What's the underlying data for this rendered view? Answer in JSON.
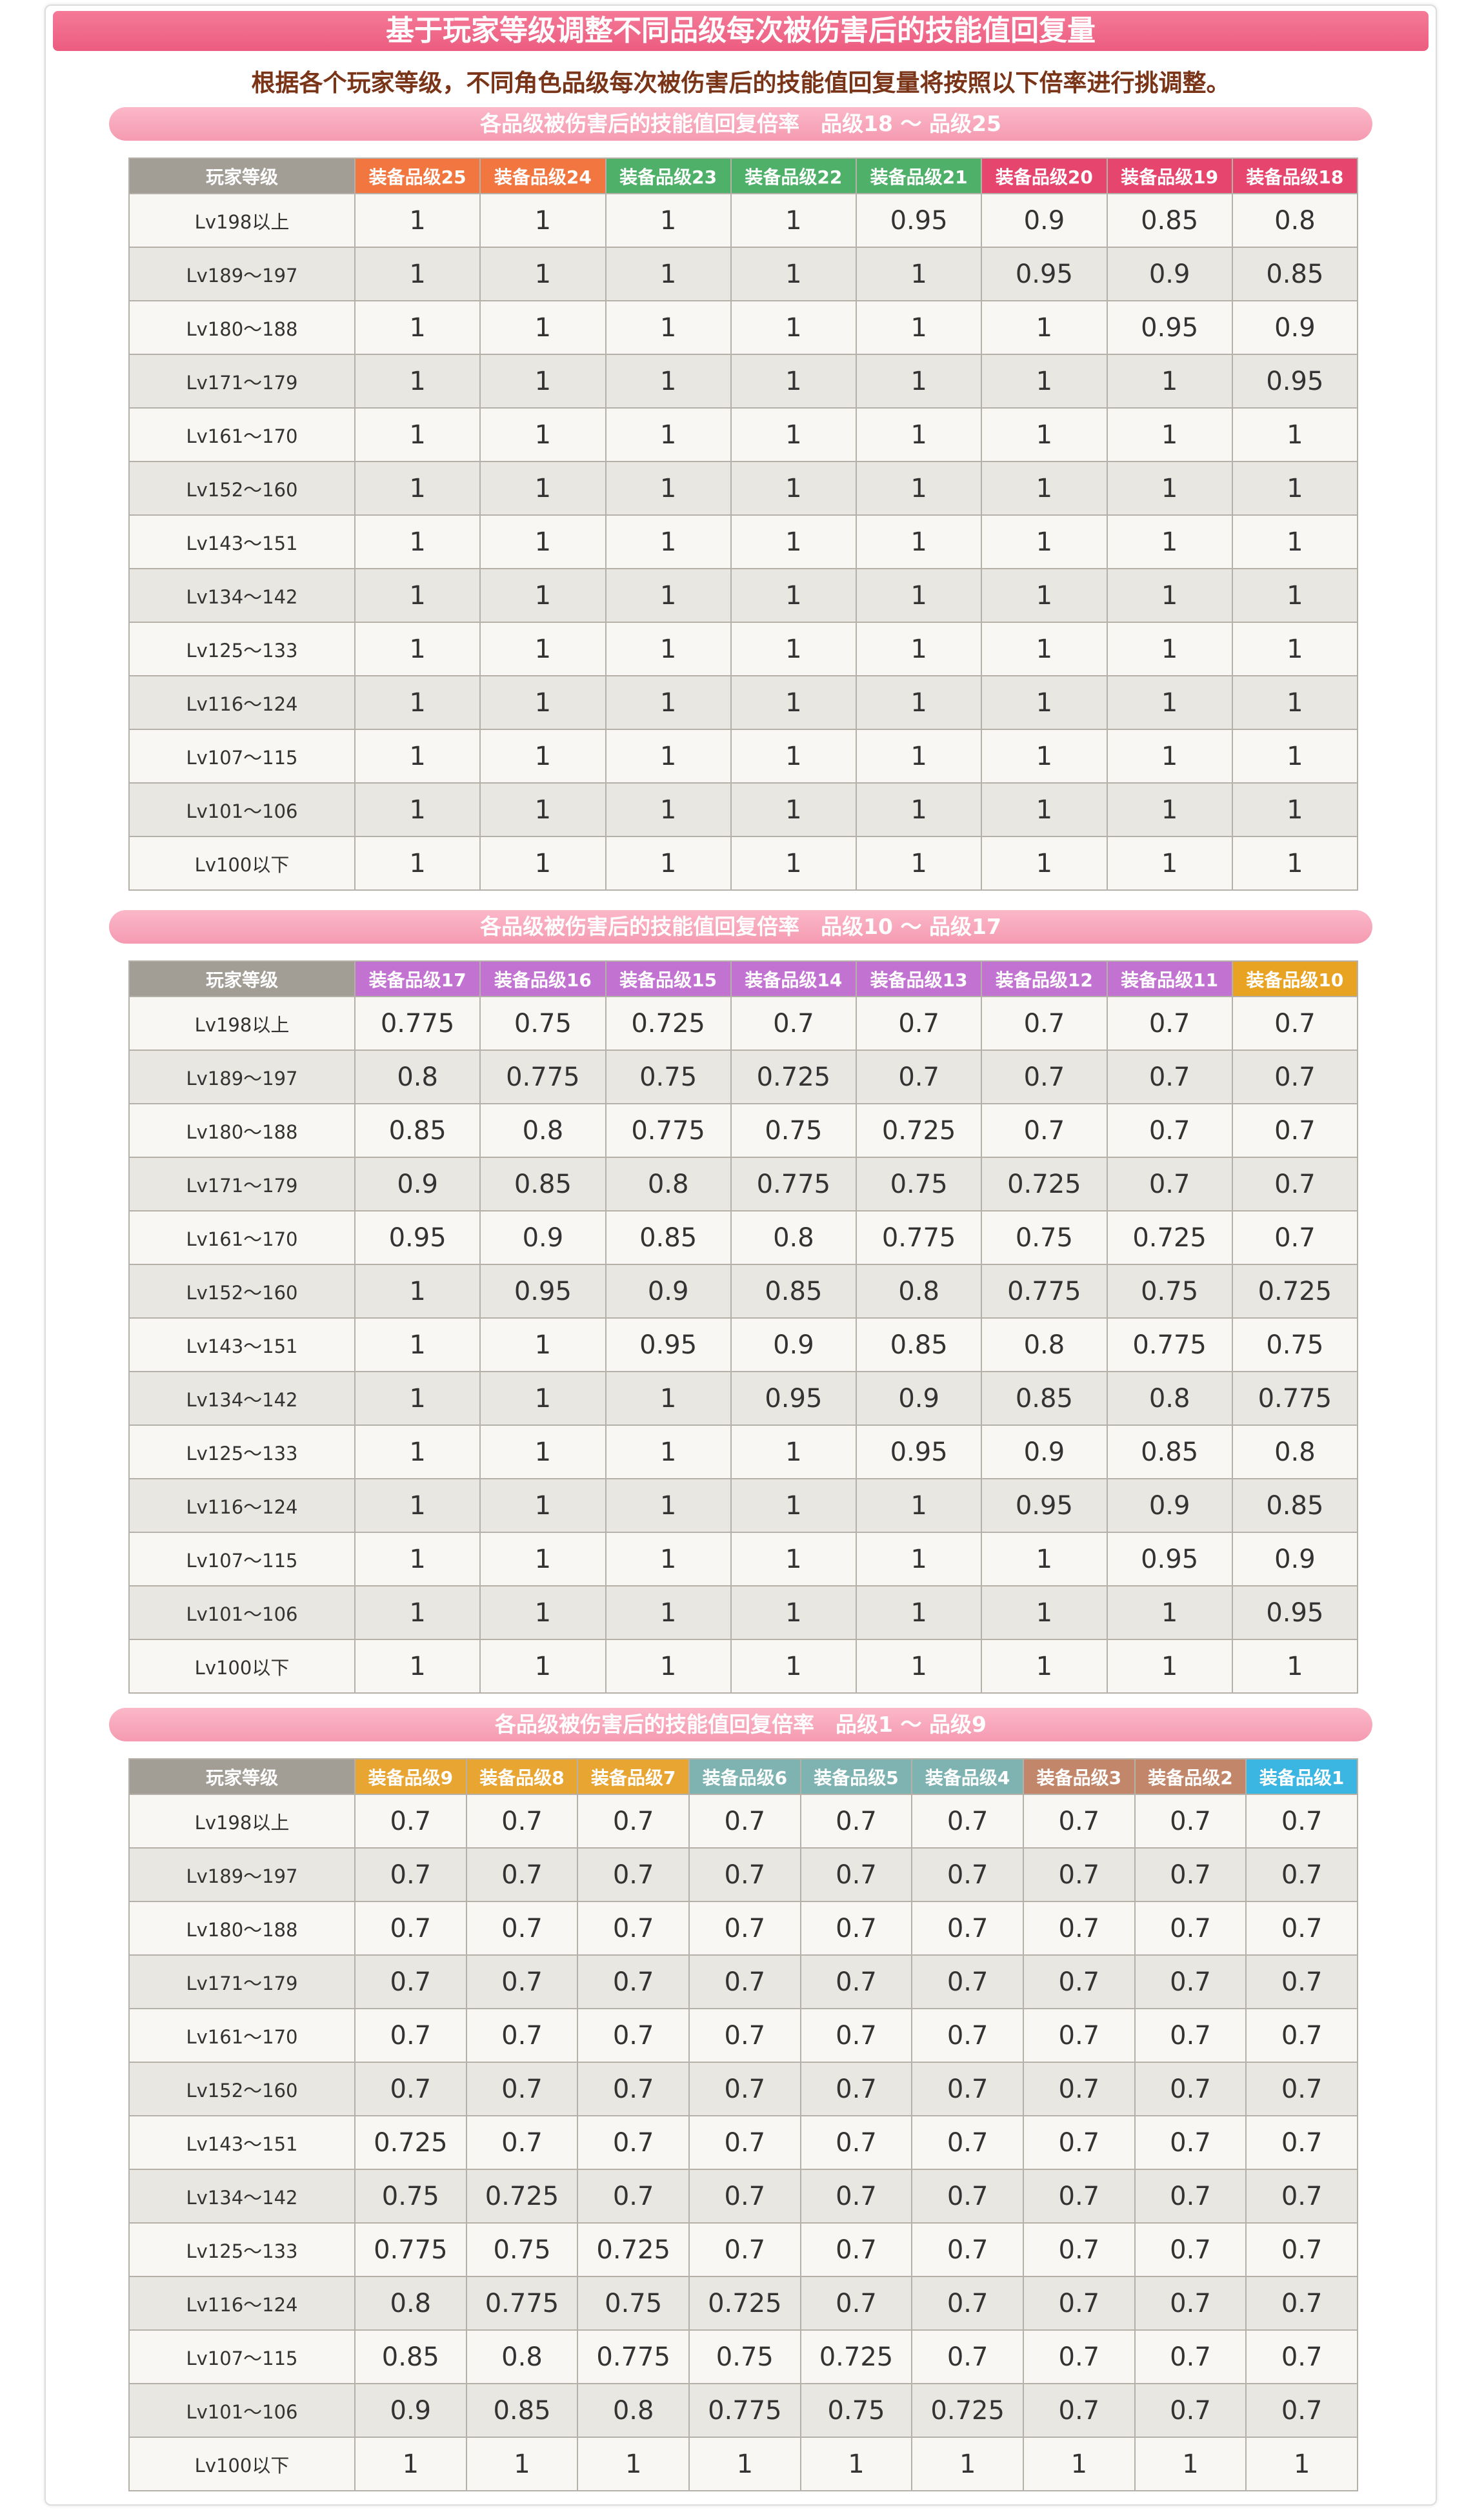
{
  "header": {
    "title": "基于玩家等级调整不同品级每次被伤害后的技能值回复量",
    "subtitle": "根据各个玩家等级，不同角色品级每次被伤害后的技能值回复量将按照以下倍率进行挑调整。"
  },
  "tables": [
    {
      "heading": "各品级被伤害后的技能值回复倍率　品级18 ～ 品级25",
      "level_header": "玩家等级",
      "columns": [
        {
          "label": "装备品级25",
          "color": "#f2763f"
        },
        {
          "label": "装备品级24",
          "color": "#f2763f"
        },
        {
          "label": "装备品级23",
          "color": "#4fb06a"
        },
        {
          "label": "装备品级22",
          "color": "#4fb06a"
        },
        {
          "label": "装备品级21",
          "color": "#4fb06a"
        },
        {
          "label": "装备品级20",
          "color": "#e6466e"
        },
        {
          "label": "装备品级19",
          "color": "#e6466e"
        },
        {
          "label": "装备品级18",
          "color": "#e6466e"
        }
      ],
      "rows": [
        {
          "level": "Lv198以上",
          "values": [
            1,
            1,
            1,
            1,
            0.95,
            0.9,
            0.85,
            0.8
          ]
        },
        {
          "level": "Lv189～197",
          "values": [
            1,
            1,
            1,
            1,
            1,
            0.95,
            0.9,
            0.85
          ]
        },
        {
          "level": "Lv180～188",
          "values": [
            1,
            1,
            1,
            1,
            1,
            1,
            0.95,
            0.9
          ]
        },
        {
          "level": "Lv171～179",
          "values": [
            1,
            1,
            1,
            1,
            1,
            1,
            1,
            0.95
          ]
        },
        {
          "level": "Lv161～170",
          "values": [
            1,
            1,
            1,
            1,
            1,
            1,
            1,
            1
          ]
        },
        {
          "level": "Lv152～160",
          "values": [
            1,
            1,
            1,
            1,
            1,
            1,
            1,
            1
          ]
        },
        {
          "level": "Lv143～151",
          "values": [
            1,
            1,
            1,
            1,
            1,
            1,
            1,
            1
          ]
        },
        {
          "level": "Lv134～142",
          "values": [
            1,
            1,
            1,
            1,
            1,
            1,
            1,
            1
          ]
        },
        {
          "level": "Lv125～133",
          "values": [
            1,
            1,
            1,
            1,
            1,
            1,
            1,
            1
          ]
        },
        {
          "level": "Lv116～124",
          "values": [
            1,
            1,
            1,
            1,
            1,
            1,
            1,
            1
          ]
        },
        {
          "level": "Lv107～115",
          "values": [
            1,
            1,
            1,
            1,
            1,
            1,
            1,
            1
          ]
        },
        {
          "level": "Lv101～106",
          "values": [
            1,
            1,
            1,
            1,
            1,
            1,
            1,
            1
          ]
        },
        {
          "level": "Lv100以下",
          "values": [
            1,
            1,
            1,
            1,
            1,
            1,
            1,
            1
          ]
        }
      ]
    },
    {
      "heading": "各品级被伤害后的技能值回复倍率　品级10 ～ 品级17",
      "level_header": "玩家等级",
      "columns": [
        {
          "label": "装备品级17",
          "color": "#c272d0"
        },
        {
          "label": "装备品级16",
          "color": "#c272d0"
        },
        {
          "label": "装备品级15",
          "color": "#c272d0"
        },
        {
          "label": "装备品级14",
          "color": "#c272d0"
        },
        {
          "label": "装备品级13",
          "color": "#c272d0"
        },
        {
          "label": "装备品级12",
          "color": "#c272d0"
        },
        {
          "label": "装备品级11",
          "color": "#c272d0"
        },
        {
          "label": "装备品级10",
          "color": "#e9a323"
        }
      ],
      "rows": [
        {
          "level": "Lv198以上",
          "values": [
            0.775,
            0.75,
            0.725,
            0.7,
            0.7,
            0.7,
            0.7,
            0.7
          ]
        },
        {
          "level": "Lv189～197",
          "values": [
            0.8,
            0.775,
            0.75,
            0.725,
            0.7,
            0.7,
            0.7,
            0.7
          ]
        },
        {
          "level": "Lv180～188",
          "values": [
            0.85,
            0.8,
            0.775,
            0.75,
            0.725,
            0.7,
            0.7,
            0.7
          ]
        },
        {
          "level": "Lv171～179",
          "values": [
            0.9,
            0.85,
            0.8,
            0.775,
            0.75,
            0.725,
            0.7,
            0.7
          ]
        },
        {
          "level": "Lv161～170",
          "values": [
            0.95,
            0.9,
            0.85,
            0.8,
            0.775,
            0.75,
            0.725,
            0.7
          ]
        },
        {
          "level": "Lv152～160",
          "values": [
            1,
            0.95,
            0.9,
            0.85,
            0.8,
            0.775,
            0.75,
            0.725
          ]
        },
        {
          "level": "Lv143～151",
          "values": [
            1,
            1,
            0.95,
            0.9,
            0.85,
            0.8,
            0.775,
            0.75
          ]
        },
        {
          "level": "Lv134～142",
          "values": [
            1,
            1,
            1,
            0.95,
            0.9,
            0.85,
            0.8,
            0.775
          ]
        },
        {
          "level": "Lv125～133",
          "values": [
            1,
            1,
            1,
            1,
            0.95,
            0.9,
            0.85,
            0.8
          ]
        },
        {
          "level": "Lv116～124",
          "values": [
            1,
            1,
            1,
            1,
            1,
            0.95,
            0.9,
            0.85
          ]
        },
        {
          "level": "Lv107～115",
          "values": [
            1,
            1,
            1,
            1,
            1,
            1,
            0.95,
            0.9
          ]
        },
        {
          "level": "Lv101～106",
          "values": [
            1,
            1,
            1,
            1,
            1,
            1,
            1,
            0.95
          ]
        },
        {
          "level": "Lv100以下",
          "values": [
            1,
            1,
            1,
            1,
            1,
            1,
            1,
            1
          ]
        }
      ]
    },
    {
      "heading": "各品级被伤害后的技能值回复倍率　品级1 ～ 品级9",
      "level_header": "玩家等级",
      "columns": [
        {
          "label": "装备品级9",
          "color": "#e9a532"
        },
        {
          "label": "装备品级8",
          "color": "#e9a532"
        },
        {
          "label": "装备品级7",
          "color": "#e9a532"
        },
        {
          "label": "装备品级6",
          "color": "#7fb3b1"
        },
        {
          "label": "装备品级5",
          "color": "#7fb3b1"
        },
        {
          "label": "装备品级4",
          "color": "#7fb3b1"
        },
        {
          "label": "装备品级3",
          "color": "#c2876b"
        },
        {
          "label": "装备品级2",
          "color": "#c2876b"
        },
        {
          "label": "装备品级1",
          "color": "#3bb6e2"
        }
      ],
      "rows": [
        {
          "level": "Lv198以上",
          "values": [
            0.7,
            0.7,
            0.7,
            0.7,
            0.7,
            0.7,
            0.7,
            0.7,
            0.7
          ]
        },
        {
          "level": "Lv189～197",
          "values": [
            0.7,
            0.7,
            0.7,
            0.7,
            0.7,
            0.7,
            0.7,
            0.7,
            0.7
          ]
        },
        {
          "level": "Lv180～188",
          "values": [
            0.7,
            0.7,
            0.7,
            0.7,
            0.7,
            0.7,
            0.7,
            0.7,
            0.7
          ]
        },
        {
          "level": "Lv171～179",
          "values": [
            0.7,
            0.7,
            0.7,
            0.7,
            0.7,
            0.7,
            0.7,
            0.7,
            0.7
          ]
        },
        {
          "level": "Lv161～170",
          "values": [
            0.7,
            0.7,
            0.7,
            0.7,
            0.7,
            0.7,
            0.7,
            0.7,
            0.7
          ]
        },
        {
          "level": "Lv152～160",
          "values": [
            0.7,
            0.7,
            0.7,
            0.7,
            0.7,
            0.7,
            0.7,
            0.7,
            0.7
          ]
        },
        {
          "level": "Lv143～151",
          "values": [
            0.725,
            0.7,
            0.7,
            0.7,
            0.7,
            0.7,
            0.7,
            0.7,
            0.7
          ]
        },
        {
          "level": "Lv134～142",
          "values": [
            0.75,
            0.725,
            0.7,
            0.7,
            0.7,
            0.7,
            0.7,
            0.7,
            0.7
          ]
        },
        {
          "level": "Lv125～133",
          "values": [
            0.775,
            0.75,
            0.725,
            0.7,
            0.7,
            0.7,
            0.7,
            0.7,
            0.7
          ]
        },
        {
          "level": "Lv116～124",
          "values": [
            0.8,
            0.775,
            0.75,
            0.725,
            0.7,
            0.7,
            0.7,
            0.7,
            0.7
          ]
        },
        {
          "level": "Lv107～115",
          "values": [
            0.85,
            0.8,
            0.775,
            0.75,
            0.725,
            0.7,
            0.7,
            0.7,
            0.7
          ]
        },
        {
          "level": "Lv101～106",
          "values": [
            0.9,
            0.85,
            0.8,
            0.775,
            0.75,
            0.725,
            0.7,
            0.7,
            0.7
          ]
        },
        {
          "level": "Lv100以下",
          "values": [
            1,
            1,
            1,
            1,
            1,
            1,
            1,
            1,
            1
          ]
        }
      ]
    }
  ]
}
